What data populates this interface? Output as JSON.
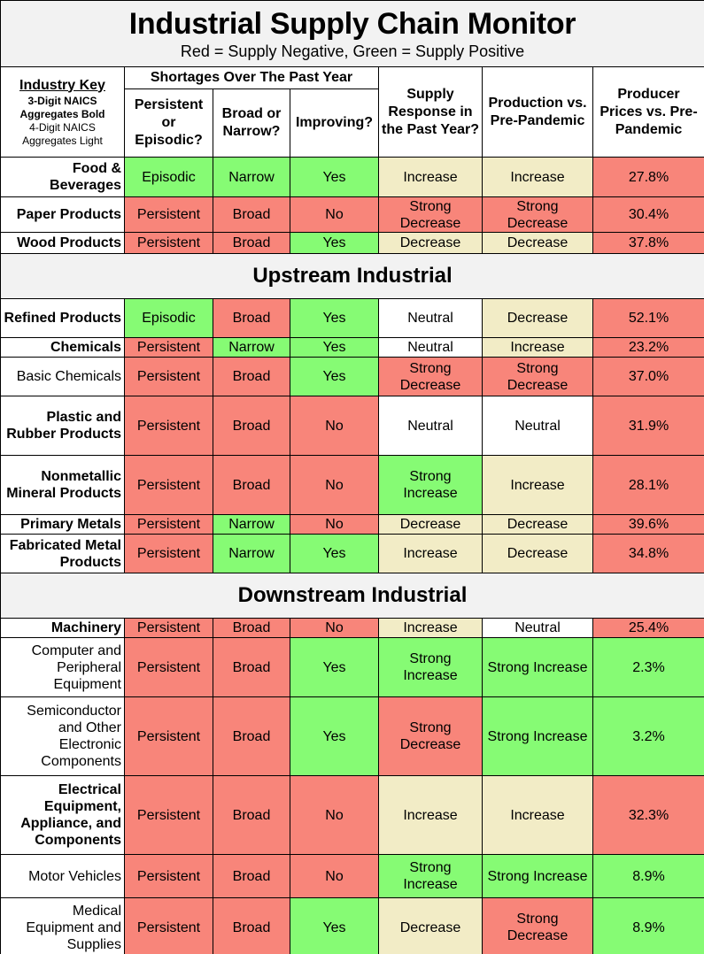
{
  "title": "Industrial Supply Chain Monitor",
  "subtitle": "Red = Supply Negative, Green = Supply Positive",
  "colors": {
    "negative": "#f8857a",
    "positive": "#86fb74",
    "moderate": "#f2ecc6",
    "neutral": "#ffffff",
    "section": "#f2f2f2"
  },
  "key": {
    "title": "Industry Key",
    "bold_note": "3-Digit NAICS Aggregates Bold",
    "light_note": "4-Digit NAICS Aggregates Light"
  },
  "headers": {
    "shortages_group": "Shortages Over The Past Year",
    "persistent": "Persistent or Episodic?",
    "broad": "Broad or Narrow?",
    "improving": "Improving?",
    "supply_response": "Supply Response in the Past Year?",
    "production": "Production vs. Pre-Pandemic",
    "prices": "Producer Prices vs. Pre-Pandemic"
  },
  "sections": [
    "Upstream Industrial",
    "Downstream Industrial"
  ],
  "chart_data": {
    "type": "table",
    "title": "Industrial Supply Chain Monitor",
    "columns": [
      "Industry",
      "Persistent or Episodic?",
      "Broad or Narrow?",
      "Improving?",
      "Supply Response in the Past Year?",
      "Production vs. Pre-Pandemic",
      "Producer Prices vs. Pre-Pandemic"
    ],
    "rows": [
      {
        "industry": "Food & Beverages",
        "level": "3-digit",
        "persistent": "Episodic",
        "broad": "Narrow",
        "improving": "Yes",
        "supply": "Increase",
        "production": "Increase",
        "prices": "27.8%",
        "colors": [
          "green",
          "green",
          "green",
          "tan",
          "tan",
          "red"
        ]
      },
      {
        "industry": "Paper Products",
        "level": "3-digit",
        "persistent": "Persistent",
        "broad": "Broad",
        "improving": "No",
        "supply": "Strong Decrease",
        "production": "Strong Decrease",
        "prices": "30.4%",
        "colors": [
          "red",
          "red",
          "red",
          "red",
          "red",
          "red"
        ]
      },
      {
        "industry": "Wood Products",
        "level": "3-digit",
        "persistent": "Persistent",
        "broad": "Broad",
        "improving": "Yes",
        "supply": "Decrease",
        "production": "Decrease",
        "prices": "37.8%",
        "colors": [
          "red",
          "red",
          "green",
          "tan",
          "tan",
          "red"
        ]
      },
      {
        "section": "Upstream Industrial"
      },
      {
        "industry": "Refined Products",
        "level": "3-digit",
        "persistent": "Episodic",
        "broad": "Broad",
        "improving": "Yes",
        "supply": "Neutral",
        "production": "Decrease",
        "prices": "52.1%",
        "colors": [
          "green",
          "red",
          "green",
          "white",
          "tan",
          "red"
        ]
      },
      {
        "industry": "Chemicals",
        "level": "3-digit",
        "persistent": "Persistent",
        "broad": "Narrow",
        "improving": "Yes",
        "supply": "Neutral",
        "production": "Increase",
        "prices": "23.2%",
        "colors": [
          "red",
          "green",
          "green",
          "white",
          "tan",
          "red"
        ]
      },
      {
        "industry": "Basic Chemicals",
        "level": "4-digit",
        "persistent": "Persistent",
        "broad": "Broad",
        "improving": "Yes",
        "supply": "Strong Decrease",
        "production": "Strong Decrease",
        "prices": "37.0%",
        "colors": [
          "red",
          "red",
          "green",
          "red",
          "red",
          "red"
        ]
      },
      {
        "industry": "Plastic and Rubber Products",
        "level": "3-digit",
        "persistent": "Persistent",
        "broad": "Broad",
        "improving": "No",
        "supply": "Neutral",
        "production": "Neutral",
        "prices": "31.9%",
        "colors": [
          "red",
          "red",
          "red",
          "white",
          "white",
          "red"
        ]
      },
      {
        "industry": "Nonmetallic Mineral Products",
        "level": "3-digit",
        "persistent": "Persistent",
        "broad": "Broad",
        "improving": "No",
        "supply": "Strong Increase",
        "production": "Increase",
        "prices": "28.1%",
        "colors": [
          "red",
          "red",
          "red",
          "green",
          "tan",
          "red"
        ]
      },
      {
        "industry": "Primary Metals",
        "level": "3-digit",
        "persistent": "Persistent",
        "broad": "Narrow",
        "improving": "No",
        "supply": "Decrease",
        "production": "Decrease",
        "prices": "39.6%",
        "colors": [
          "red",
          "green",
          "red",
          "tan",
          "tan",
          "red"
        ]
      },
      {
        "industry": "Fabricated Metal Products",
        "level": "3-digit",
        "persistent": "Persistent",
        "broad": "Narrow",
        "improving": "Yes",
        "supply": "Increase",
        "production": "Decrease",
        "prices": "34.8%",
        "colors": [
          "red",
          "green",
          "green",
          "tan",
          "tan",
          "red"
        ]
      },
      {
        "section": "Downstream Industrial"
      },
      {
        "industry": "Machinery",
        "level": "3-digit",
        "persistent": "Persistent",
        "broad": "Broad",
        "improving": "No",
        "supply": "Increase",
        "production": "Neutral",
        "prices": "25.4%",
        "colors": [
          "red",
          "red",
          "red",
          "tan",
          "white",
          "red"
        ]
      },
      {
        "industry": "Computer and Peripheral Equipment",
        "level": "4-digit",
        "persistent": "Persistent",
        "broad": "Broad",
        "improving": "Yes",
        "supply": "Strong Increase",
        "production": "Strong Increase",
        "prices": "2.3%",
        "colors": [
          "red",
          "red",
          "green",
          "green",
          "green",
          "green"
        ]
      },
      {
        "industry": "Semiconductor and Other Electronic Components",
        "level": "4-digit",
        "persistent": "Persistent",
        "broad": "Broad",
        "improving": "Yes",
        "supply": "Strong Decrease",
        "production": "Strong Increase",
        "prices": "3.2%",
        "colors": [
          "red",
          "red",
          "green",
          "red",
          "green",
          "green"
        ]
      },
      {
        "industry": "Electrical Equipment, Appliance, and Components",
        "level": "3-digit",
        "persistent": "Persistent",
        "broad": "Broad",
        "improving": "No",
        "supply": "Increase",
        "production": "Increase",
        "prices": "32.3%",
        "colors": [
          "red",
          "red",
          "red",
          "tan",
          "tan",
          "red"
        ]
      },
      {
        "industry": "Motor Vehicles",
        "level": "4-digit",
        "persistent": "Persistent",
        "broad": "Broad",
        "improving": "No",
        "supply": "Strong Increase",
        "production": "Strong Increase",
        "prices": "8.9%",
        "colors": [
          "red",
          "red",
          "red",
          "green",
          "green",
          "green"
        ]
      },
      {
        "industry": "Medical Equipment and Supplies",
        "level": "4-digit",
        "persistent": "Persistent",
        "broad": "Broad",
        "improving": "Yes",
        "supply": "Decrease",
        "production": "Strong Decrease",
        "prices": "8.9%",
        "colors": [
          "red",
          "red",
          "green",
          "tan",
          "red",
          "green"
        ]
      }
    ]
  }
}
